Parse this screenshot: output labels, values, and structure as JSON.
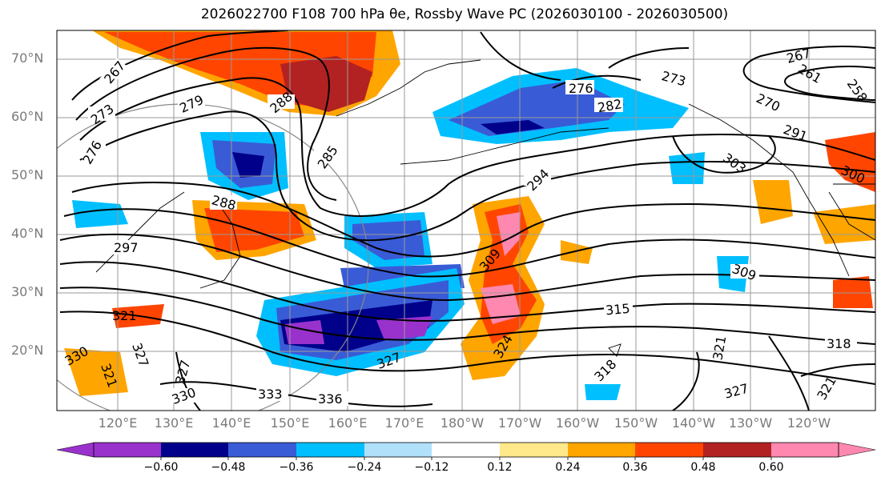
{
  "title": "2026022700 F108 700 hPa θe, Rossby Wave PC (2026030100 - 2026030500)",
  "map": {
    "lat_labels": [
      "70°N",
      "60°N",
      "50°N",
      "40°N",
      "30°N",
      "20°N"
    ],
    "lon_labels": [
      "120°E",
      "130°E",
      "140°E",
      "150°E",
      "160°E",
      "170°E",
      "180°W",
      "170°W",
      "160°W",
      "150°W",
      "140°W",
      "130°W",
      "120°W"
    ],
    "contour_labels": [
      "267",
      "273",
      "276",
      "279",
      "288",
      "285",
      "288",
      "297",
      "276",
      "282",
      "273",
      "267",
      "261",
      "258",
      "270",
      "291",
      "303",
      "300",
      "294",
      "309",
      "309",
      "315",
      "321",
      "324",
      "318",
      "318",
      "327",
      "327",
      "321",
      "327",
      "330",
      "333",
      "336",
      "327",
      "321",
      "321",
      "330"
    ]
  },
  "colorbar": {
    "ticks": [
      "−0.60",
      "−0.48",
      "−0.36",
      "−0.24",
      "−0.12",
      "0.12",
      "0.24",
      "0.36",
      "0.48",
      "0.60"
    ],
    "colors": [
      "#9932cc",
      "#00008b",
      "#3a5bd6",
      "#00bfff",
      "#b0e0fa",
      "#ffffff",
      "#ffe88a",
      "#ffa500",
      "#ff4500",
      "#b22222",
      "#ff88b0"
    ]
  },
  "colors": {
    "contour": "#000000",
    "grid": "#9a9a9a",
    "axis_label": "#7a7a7a"
  }
}
